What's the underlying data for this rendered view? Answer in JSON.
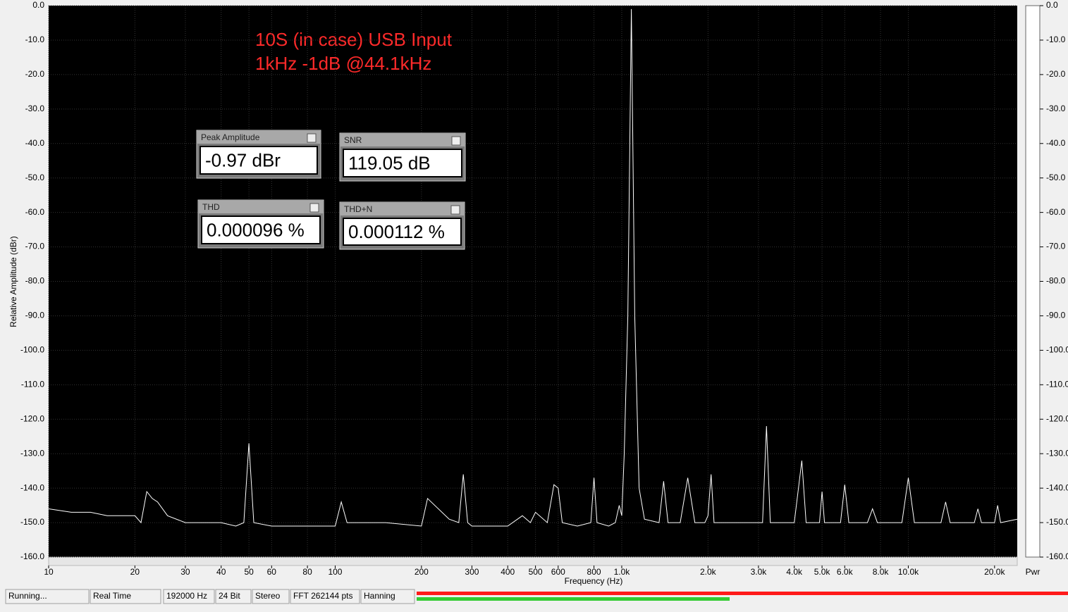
{
  "chart_data": {
    "type": "line",
    "x_label": "Frequency (Hz)",
    "y_label": "Relative Amplitude (dBr)",
    "annotations": [
      "10S (in case) USB Input",
      "1kHz -1dB @44.1kHz"
    ],
    "x_log": true,
    "grid": true,
    "color": "#ffffff",
    "meter_label": "Pwr",
    "xlim": [
      10,
      24000
    ],
    "ylim": [
      -160,
      0
    ],
    "xticks": [
      10,
      20,
      30,
      40,
      50,
      60,
      80,
      100,
      200,
      300,
      400,
      500,
      600,
      800,
      {
        "value": 1000,
        "label": "1.0k"
      },
      {
        "value": 2000,
        "label": "2.0k"
      },
      {
        "value": 3000,
        "label": "3.0k"
      },
      {
        "value": 4000,
        "label": "4.0k"
      },
      {
        "value": 5000,
        "label": "5.0k"
      },
      {
        "value": 6000,
        "label": "6.0k"
      },
      {
        "value": 8000,
        "label": "8.0k"
      },
      {
        "value": 10000,
        "label": "10.0k"
      },
      {
        "value": 20000,
        "label": "20.0k"
      }
    ],
    "yticks": [
      {
        "value": 0,
        "label": "0.0"
      },
      {
        "value": -10,
        "label": "-10.0"
      },
      {
        "value": -20,
        "label": "-20.0"
      },
      {
        "value": -30,
        "label": "-30.0"
      },
      {
        "value": -40,
        "label": "-40.0"
      },
      {
        "value": -50,
        "label": "-50.0"
      },
      {
        "value": -60,
        "label": "-60.0"
      },
      {
        "value": -70,
        "label": "-70.0"
      },
      {
        "value": -80,
        "label": "-80.0"
      },
      {
        "value": -90,
        "label": "-90.0"
      },
      {
        "value": -100,
        "label": "-100.0"
      },
      {
        "value": -110,
        "label": "-110.0"
      },
      {
        "value": -120,
        "label": "-120.0"
      },
      {
        "value": -130,
        "label": "-130.0"
      },
      {
        "value": -140,
        "label": "-140.0"
      },
      {
        "value": -150,
        "label": "-150.0"
      },
      {
        "value": -160,
        "label": "-160.0"
      }
    ],
    "x": [
      10,
      12,
      14,
      16,
      18,
      20,
      21,
      22,
      23,
      24,
      26,
      30,
      35,
      40,
      45,
      48,
      50,
      52,
      60,
      80,
      100,
      105,
      110,
      120,
      150,
      200,
      210,
      250,
      270,
      280,
      290,
      300,
      350,
      400,
      450,
      480,
      500,
      550,
      580,
      600,
      620,
      700,
      780,
      800,
      820,
      900,
      950,
      980,
      1000,
      1020,
      1050,
      1080,
      1110,
      1150,
      1200,
      1350,
      1400,
      1450,
      1600,
      1700,
      1800,
      1950,
      2000,
      2050,
      2100,
      2500,
      3100,
      3200,
      3300,
      4000,
      4250,
      4400,
      4600,
      4900,
      5000,
      5100,
      5800,
      6000,
      6200,
      7200,
      7500,
      7800,
      8500,
      9500,
      10000,
      10500,
      13000,
      13500,
      14000,
      17000,
      17500,
      18000,
      20000,
      20500,
      21000,
      24000
    ],
    "values": [
      -146,
      -147,
      -147,
      -148,
      -148,
      -148,
      -150,
      -141,
      -143,
      -144,
      -148,
      -150,
      -150,
      -150,
      -151,
      -150,
      -127,
      -150,
      -151,
      -151,
      -151,
      -144,
      -150,
      -150,
      -150,
      -151,
      -143,
      -149,
      -150,
      -136,
      -150,
      -151,
      -151,
      -151,
      -148,
      -150,
      -147,
      -150,
      -139,
      -140,
      -150,
      -151,
      -150,
      -137,
      -150,
      -151,
      -150,
      -145,
      -148,
      -130,
      -90,
      -1,
      -90,
      -140,
      -149,
      -150,
      -138,
      -150,
      -150,
      -137,
      -150,
      -150,
      -148,
      -136,
      -150,
      -150,
      -150,
      -122,
      -150,
      -150,
      -132,
      -150,
      -150,
      -150,
      -141,
      -150,
      -150,
      -139,
      -150,
      -150,
      -146,
      -150,
      -150,
      -150,
      -137,
      -150,
      -150,
      -144,
      -150,
      -150,
      -146,
      -150,
      -150,
      -145,
      -150,
      -149
    ]
  },
  "readouts": [
    {
      "title": "Peak Amplitude",
      "value": "-0.97 dBr"
    },
    {
      "title": "SNR",
      "value": "119.05 dB"
    },
    {
      "title": "THD",
      "value": "0.000096 %"
    },
    {
      "title": "THD+N",
      "value": "0.000112 %"
    }
  ],
  "status_bar": [
    "Running...",
    "Real Time",
    "192000 Hz",
    "24 Bit",
    "Stereo",
    "FFT 262144 pts",
    "Hanning"
  ]
}
